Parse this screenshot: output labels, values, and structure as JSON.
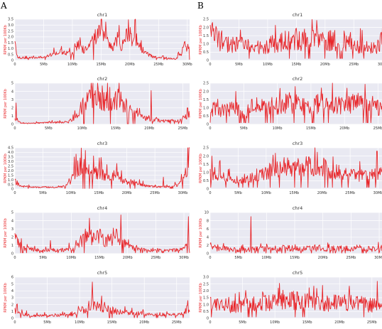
{
  "panel_labels": [
    "A",
    "B"
  ],
  "colors": {
    "line": "#e8262a",
    "background": "#e9e9f2",
    "grid": "#ffffff"
  },
  "chart_data": [
    {
      "type": "line",
      "panel": "A",
      "title": "chr1",
      "ylabel": "RPKM per 100Kb",
      "ylim": [
        0,
        3.5
      ],
      "yticks": [
        "0",
        "0.5",
        "1.0",
        "1.5",
        "2.0",
        "2.5",
        "3.0",
        "3.5"
      ],
      "xticks": [
        "0",
        "5Mb",
        "10Mb",
        "15Mb",
        "20Mb",
        "25Mb",
        "30Mb"
      ],
      "xmax_mb": 30.4,
      "key_points": [
        [
          0,
          1.5
        ],
        [
          0.5,
          0.2
        ],
        [
          2,
          0.2
        ],
        [
          5,
          0.3
        ],
        [
          8,
          0.7
        ],
        [
          10,
          0.5
        ],
        [
          11,
          1.3
        ],
        [
          12,
          0.9
        ],
        [
          13,
          1.4
        ],
        [
          14,
          2.0
        ],
        [
          14.6,
          2.6
        ],
        [
          15,
          3.1
        ],
        [
          15.6,
          2.0
        ],
        [
          16,
          1.8
        ],
        [
          17,
          1.0
        ],
        [
          17.8,
          1.9
        ],
        [
          18.5,
          1.0
        ],
        [
          19.5,
          2.2
        ],
        [
          20,
          1.7
        ],
        [
          21,
          2.0
        ],
        [
          22,
          1.0
        ],
        [
          23,
          0.6
        ],
        [
          24,
          0.3
        ],
        [
          26,
          0.2
        ],
        [
          28,
          0.1
        ],
        [
          29,
          0.6
        ],
        [
          29.6,
          1.6
        ],
        [
          30,
          0.8
        ],
        [
          30.4,
          1.8
        ]
      ],
      "noise": 0.35,
      "base": 0.06,
      "spikes": []
    },
    {
      "type": "line",
      "panel": "A",
      "title": "chr2",
      "ylabel": "RPKM per 100Kb",
      "ylim": [
        0,
        5
      ],
      "yticks": [
        "0",
        "1",
        "2",
        "3",
        "4",
        "5"
      ],
      "xticks": [
        "0",
        "5Mb",
        "10Mb",
        "15Mb",
        "20Mb",
        "25Mb"
      ],
      "xmax_mb": 26,
      "key_points": [
        [
          0,
          0.6
        ],
        [
          1,
          0.1
        ],
        [
          5,
          0.2
        ],
        [
          8,
          0.3
        ],
        [
          9,
          1.0
        ],
        [
          10,
          2.2
        ],
        [
          11,
          3.0
        ],
        [
          12,
          3.4
        ],
        [
          13,
          3.0
        ],
        [
          14,
          2.8
        ],
        [
          15,
          3.2
        ],
        [
          16,
          2.6
        ],
        [
          17,
          1.8
        ],
        [
          18,
          1.2
        ],
        [
          19,
          0.8
        ],
        [
          20,
          0.6
        ],
        [
          21,
          0.5
        ],
        [
          22,
          0.4
        ],
        [
          24,
          0.4
        ],
        [
          25,
          0.6
        ],
        [
          26,
          1.2
        ]
      ],
      "noise": 0.45,
      "base": 0.08,
      "spikes": [
        [
          20.3,
          4.1
        ],
        [
          0.2,
          2.6
        ],
        [
          25.7,
          2.0
        ]
      ]
    },
    {
      "type": "line",
      "panel": "A",
      "title": "chr3",
      "ylabel": "RPKM per 100Kb",
      "ylim": [
        0,
        4.5
      ],
      "yticks": [
        "0",
        "0.5",
        "1.0",
        "1.5",
        "2.0",
        "2.5",
        "3.0",
        "3.5",
        "4.0",
        "4.5"
      ],
      "xticks": [
        "0",
        "5Mb",
        "10Mb",
        "15Mb",
        "20Mb",
        "25Mb",
        "30Mb"
      ],
      "xmax_mb": 31.2,
      "key_points": [
        [
          0,
          0.9
        ],
        [
          1,
          0.3
        ],
        [
          3,
          0.2
        ],
        [
          7,
          0.2
        ],
        [
          9,
          0.3
        ],
        [
          10,
          0.8
        ],
        [
          11,
          2.2
        ],
        [
          12,
          2.6
        ],
        [
          13,
          2.0
        ],
        [
          14,
          1.7
        ],
        [
          15,
          1.8
        ],
        [
          16,
          1.5
        ],
        [
          17,
          1.2
        ],
        [
          18,
          1.6
        ],
        [
          19,
          1.0
        ],
        [
          20,
          0.8
        ],
        [
          22,
          0.5
        ],
        [
          24,
          0.3
        ],
        [
          27,
          0.2
        ],
        [
          29,
          0.4
        ],
        [
          30,
          0.9
        ],
        [
          30.8,
          2.2
        ],
        [
          31.2,
          4.1
        ]
      ],
      "noise": 0.4,
      "base": 0.06,
      "spikes": [
        [
          10.6,
          3.5
        ],
        [
          26.5,
          1.3
        ]
      ]
    },
    {
      "type": "line",
      "panel": "A",
      "title": "chr4",
      "ylabel": "RPKM per 100Kb",
      "ylim": [
        0,
        5
      ],
      "yticks": [
        "0",
        "1",
        "2",
        "3",
        "4",
        "5"
      ],
      "xticks": [
        "0",
        "5Mb",
        "10Mb",
        "15Mb",
        "20Mb",
        "25Mb",
        "30Mb"
      ],
      "xmax_mb": 31,
      "key_points": [
        [
          0,
          2.0
        ],
        [
          1,
          0.9
        ],
        [
          3,
          0.5
        ],
        [
          5,
          0.4
        ],
        [
          8,
          0.4
        ],
        [
          10,
          0.5
        ],
        [
          11,
          0.8
        ],
        [
          12,
          1.5
        ],
        [
          13,
          2.5
        ],
        [
          14,
          1.8
        ],
        [
          15,
          2.2
        ],
        [
          16,
          1.4
        ],
        [
          17,
          1.8
        ],
        [
          18,
          2.3
        ],
        [
          19,
          1.5
        ],
        [
          20,
          0.9
        ],
        [
          22,
          0.5
        ],
        [
          25,
          0.4
        ],
        [
          28,
          0.4
        ],
        [
          30,
          0.6
        ],
        [
          31,
          1.5
        ]
      ],
      "noise": 0.5,
      "base": 0.1,
      "spikes": [
        [
          13.2,
          4.3
        ],
        [
          18.8,
          4.7
        ],
        [
          30.8,
          4.5
        ],
        [
          6.3,
          1.6
        ],
        [
          9.6,
          1.3
        ]
      ]
    },
    {
      "type": "line",
      "panel": "A",
      "title": "chr5",
      "ylabel": "RPKM per 100Kb",
      "ylim": [
        0,
        6
      ],
      "yticks": [
        "0",
        "1",
        "2",
        "3",
        "4",
        "5",
        "6"
      ],
      "xticks": [
        "0",
        "5Mb",
        "10Mb",
        "15Mb",
        "20Mb",
        "25Mb"
      ],
      "xmax_mb": 27,
      "key_points": [
        [
          0,
          1.2
        ],
        [
          1,
          0.6
        ],
        [
          3,
          0.4
        ],
        [
          6,
          0.4
        ],
        [
          9,
          0.5
        ],
        [
          10,
          0.9
        ],
        [
          11,
          1.5
        ],
        [
          12,
          2.3
        ],
        [
          13,
          1.7
        ],
        [
          14,
          1.4
        ],
        [
          15,
          1.2
        ],
        [
          16,
          0.9
        ],
        [
          17,
          1.0
        ],
        [
          18,
          0.7
        ],
        [
          20,
          0.6
        ],
        [
          23,
          0.5
        ],
        [
          25,
          0.5
        ],
        [
          26,
          0.8
        ],
        [
          27,
          1.6
        ]
      ],
      "noise": 0.45,
      "base": 0.08,
      "spikes": [
        [
          12.0,
          5.3
        ],
        [
          0.3,
          2.0
        ]
      ]
    },
    {
      "type": "line",
      "panel": "B",
      "title": "chr1",
      "ylabel": "RPKM per 100Kb",
      "ylim": [
        0,
        2.5
      ],
      "yticks": [
        "0",
        "0.5",
        "1.0",
        "1.5",
        "2.0",
        "2.5"
      ],
      "xticks": [
        "0",
        "5Mb",
        "10Mb",
        "15Mb",
        "20Mb",
        "25Mb",
        "30Mb"
      ],
      "xmax_mb": 30.4,
      "key_points": [
        [
          0,
          1.6
        ],
        [
          3,
          1.0
        ],
        [
          6,
          0.9
        ],
        [
          9,
          0.8
        ],
        [
          12,
          1.1
        ],
        [
          15,
          1.3
        ],
        [
          18,
          1.2
        ],
        [
          21,
          1.3
        ],
        [
          24,
          1.1
        ],
        [
          27,
          0.8
        ],
        [
          29,
          0.7
        ],
        [
          30.4,
          1.5
        ]
      ],
      "noise": 0.55,
      "base": 0.12,
      "spikes": [
        [
          30,
          2.5
        ],
        [
          0.4,
          2.3
        ]
      ]
    },
    {
      "type": "line",
      "panel": "B",
      "title": "chr2",
      "ylabel": "RPKM per 100Kb",
      "ylim": [
        0,
        2.5
      ],
      "yticks": [
        "0",
        "0.5",
        "1.0",
        "1.5",
        "2.0",
        "2.5"
      ],
      "xticks": [
        "0",
        "5Mb",
        "10Mb",
        "15Mb",
        "20Mb",
        "25Mb"
      ],
      "xmax_mb": 26,
      "key_points": [
        [
          0,
          1.0
        ],
        [
          2,
          0.8
        ],
        [
          4,
          1.0
        ],
        [
          5,
          0.4
        ],
        [
          6,
          1.1
        ],
        [
          8,
          1.1
        ],
        [
          10,
          1.2
        ],
        [
          12,
          1.3
        ],
        [
          14,
          1.1
        ],
        [
          16,
          1.2
        ],
        [
          18,
          1.3
        ],
        [
          20,
          1.2
        ],
        [
          22,
          1.3
        ],
        [
          24,
          1.2
        ],
        [
          26,
          0.9
        ]
      ],
      "noise": 0.5,
      "base": 0.1,
      "spikes": [
        [
          20.4,
          2.2
        ],
        [
          3.8,
          2.0
        ],
        [
          5.0,
          0.1
        ]
      ]
    },
    {
      "type": "line",
      "panel": "B",
      "title": "chr3",
      "ylabel": "RPKM per 100Kb",
      "ylim": [
        0,
        2.5
      ],
      "yticks": [
        "0",
        "0.5",
        "1.0",
        "1.5",
        "2.0",
        "2.5"
      ],
      "xticks": [
        "0",
        "5Mb",
        "10Mb",
        "15Mb",
        "20Mb",
        "25Mb",
        "30Mb"
      ],
      "xmax_mb": 31.2,
      "key_points": [
        [
          0,
          0.9
        ],
        [
          2,
          0.8
        ],
        [
          4,
          0.5
        ],
        [
          6,
          0.6
        ],
        [
          8,
          0.7
        ],
        [
          10,
          1.0
        ],
        [
          12,
          1.3
        ],
        [
          15,
          1.3
        ],
        [
          18,
          1.4
        ],
        [
          20,
          1.3
        ],
        [
          23,
          1.0
        ],
        [
          26,
          0.8
        ],
        [
          29,
          0.9
        ],
        [
          31.2,
          1.1
        ]
      ],
      "noise": 0.45,
      "base": 0.1,
      "spikes": [
        [
          29.8,
          2.3
        ],
        [
          0.3,
          2.0
        ]
      ]
    },
    {
      "type": "line",
      "panel": "B",
      "title": "chr4",
      "ylabel": "RPKM per 100Kb",
      "ylim": [
        0,
        10
      ],
      "yticks": [
        "0",
        "2",
        "4",
        "6",
        "8",
        "10"
      ],
      "xticks": [
        "0",
        "5Mb",
        "10Mb",
        "15Mb",
        "20Mb",
        "25Mb",
        "30Mb"
      ],
      "xmax_mb": 31,
      "key_points": [
        [
          0,
          1.5
        ],
        [
          3,
          1.1
        ],
        [
          6,
          1.0
        ],
        [
          9,
          1.2
        ],
        [
          12,
          1.3
        ],
        [
          15,
          1.3
        ],
        [
          18,
          1.2
        ],
        [
          21,
          1.3
        ],
        [
          24,
          1.2
        ],
        [
          27,
          1.1
        ],
        [
          31,
          1.4
        ]
      ],
      "noise": 0.6,
      "base": 0.15,
      "spikes": [
        [
          7.2,
          9.0
        ],
        [
          7.3,
          0.2
        ]
      ]
    },
    {
      "type": "line",
      "panel": "B",
      "title": "chr5",
      "ylabel": "RPKM per 100Kb",
      "ylim": [
        0,
        3.0
      ],
      "yticks": [
        "0",
        "0.5",
        "1.0",
        "1.5",
        "2.0",
        "2.5",
        "3.0"
      ],
      "xticks": [
        "0",
        "5Mb",
        "10Mb",
        "15Mb",
        "20Mb",
        "25Mb"
      ],
      "xmax_mb": 27,
      "key_points": [
        [
          0,
          1.0
        ],
        [
          3,
          0.8
        ],
        [
          6,
          1.0
        ],
        [
          9,
          1.1
        ],
        [
          12,
          1.3
        ],
        [
          15,
          1.2
        ],
        [
          18,
          1.1
        ],
        [
          21,
          1.2
        ],
        [
          24,
          1.0
        ],
        [
          27,
          0.9
        ]
      ],
      "noise": 0.55,
      "base": 0.1,
      "spikes": [
        [
          25.8,
          2.7
        ],
        [
          0.2,
          0.1
        ]
      ]
    }
  ]
}
